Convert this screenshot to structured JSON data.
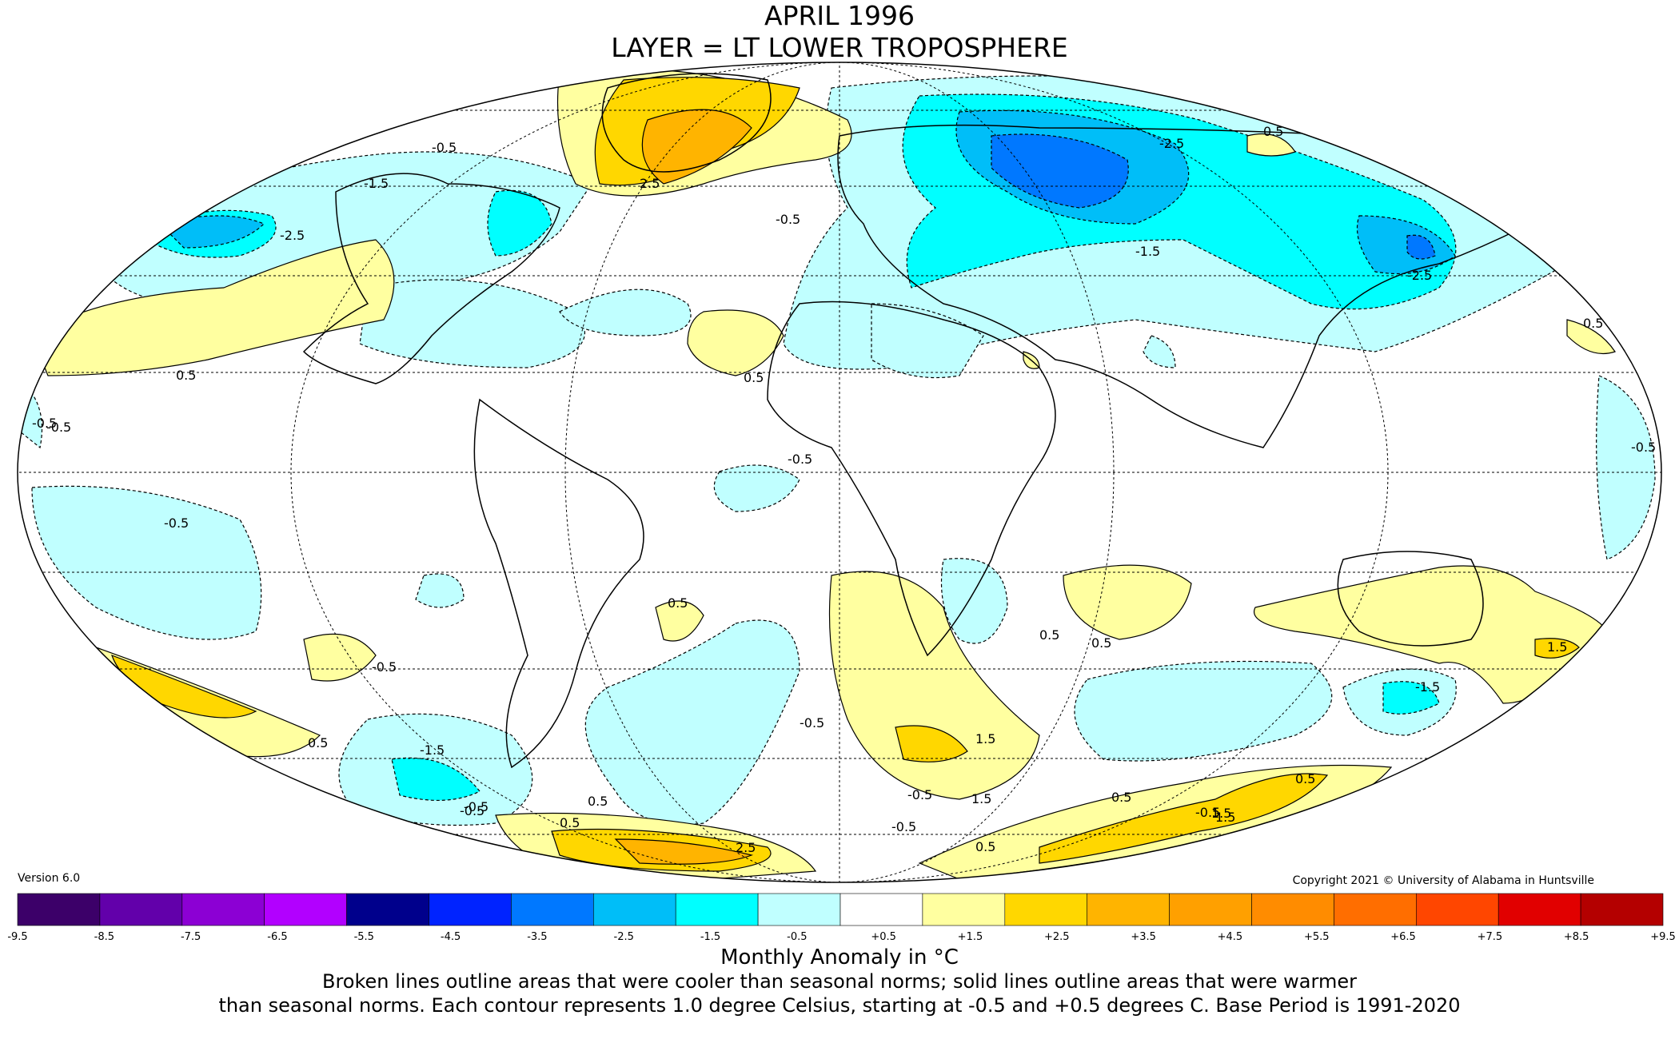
{
  "title": {
    "line1": "APRIL 1996",
    "line2": "LAYER = LT LOWER TROPOSPHERE"
  },
  "version": "Version 6.0",
  "copyright": "Copyright 2021 © University of Alabama in Huntsville",
  "colorbar": {
    "label": "Monthly Anomaly in °C",
    "ticks": [
      "-9.5",
      "-8.5",
      "-7.5",
      "-6.5",
      "-5.5",
      "-4.5",
      "-3.5",
      "-2.5",
      "-1.5",
      "-0.5",
      "+0.5",
      "+1.5",
      "+2.5",
      "+3.5",
      "+4.5",
      "+5.5",
      "+6.5",
      "+7.5",
      "+8.5",
      "+9.5"
    ],
    "colors": [
      "#3c0069",
      "#6200aa",
      "#8c00d4",
      "#b200ff",
      "#00008c",
      "#0023ff",
      "#0078ff",
      "#00bef8",
      "#00ffff",
      "#c0ffff",
      "#ffffff",
      "#ffffa0",
      "#ffd700",
      "#ffb400",
      "#ffa000",
      "#ff8c00",
      "#ff6e00",
      "#ff4600",
      "#e10000",
      "#b40000"
    ]
  },
  "notes": {
    "line1": "Broken lines outline areas that were cooler than seasonal norms; solid lines outline areas that were warmer",
    "line2": "than seasonal norms. Each contour represents 1.0 degree Celsius, starting at -0.5 and +0.5 degrees C. Base Period is 1991-2020"
  },
  "contour_labels": [
    {
      "text": "-0.5",
      "cls": "cool"
    },
    {
      "text": "0.5",
      "cls": "warm"
    },
    {
      "text": "-1.5",
      "cls": "cool"
    },
    {
      "text": "1.5",
      "cls": "warm"
    },
    {
      "text": "-2.5",
      "cls": "cool"
    },
    {
      "text": "2.5",
      "cls": "warm"
    }
  ],
  "map_labels": [
    "-0.5",
    "-2.5",
    "-1.5",
    "-0.5",
    "2.5",
    "-0.5",
    "0.5",
    "-0.5",
    "-2.5",
    "-1.5",
    "-2.5",
    "0.5",
    "0.5",
    "0.5",
    "-0.5",
    "0.5",
    "-0.5",
    "-0.5",
    "-0.5",
    "0.5",
    "0.5",
    "-0.5",
    "-0.5",
    "1.5",
    "-0.5",
    "-1.5",
    "1.5",
    "0.5",
    "0.5",
    "1.5",
    "-1.5",
    "-0.5",
    "0.5",
    "0.5",
    "-0.5",
    "1.5",
    "-0.5",
    "0.5",
    "2.5",
    "-0.5",
    "0.5",
    "1.5"
  ]
}
